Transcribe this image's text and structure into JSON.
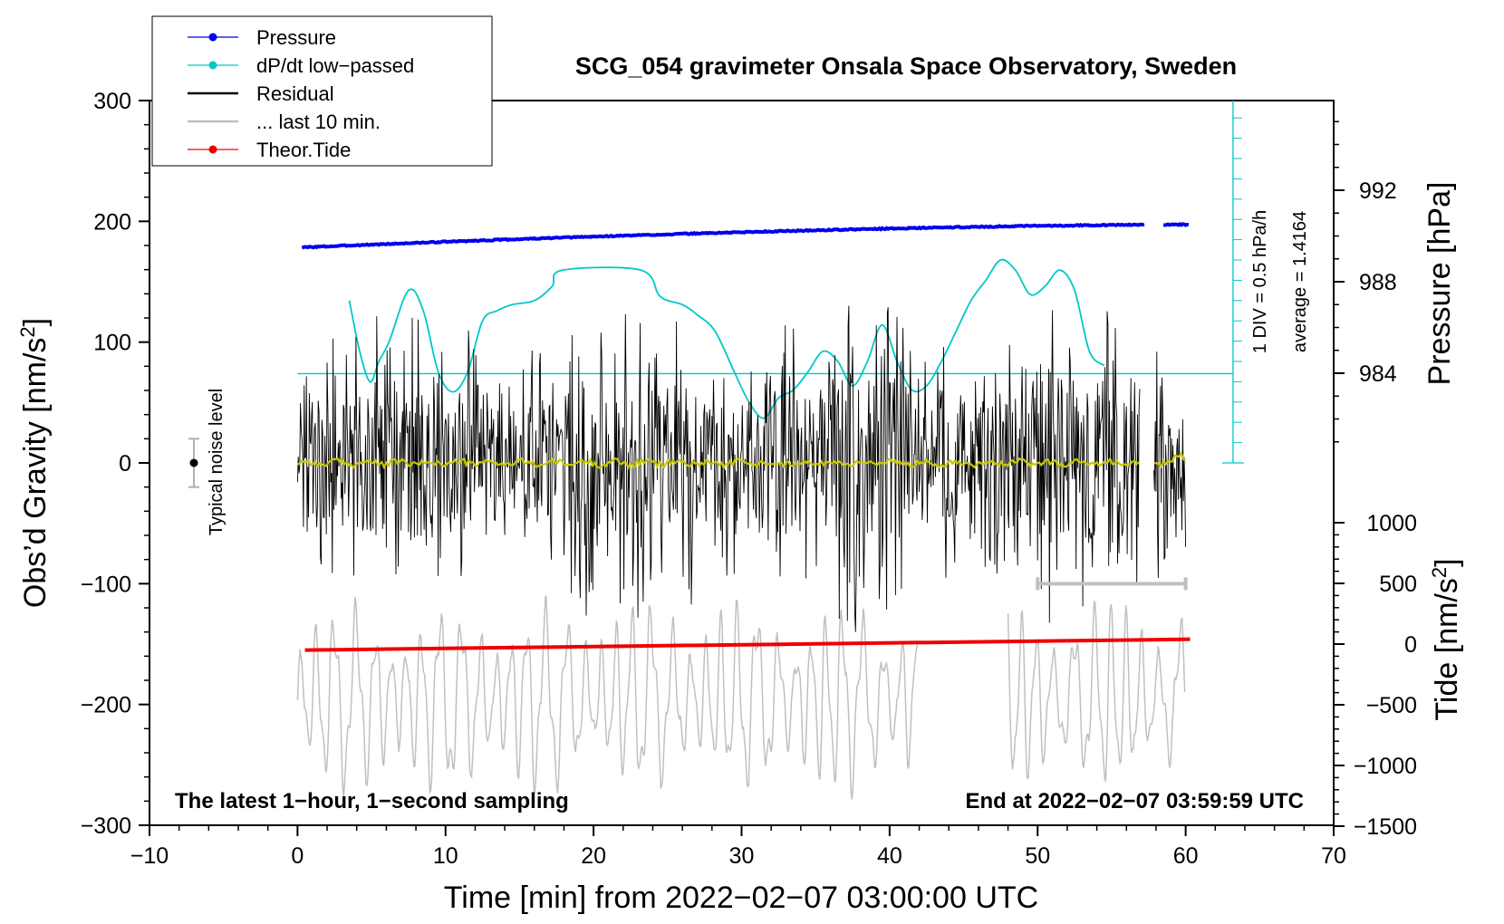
{
  "chart_data": {
    "type": "line",
    "title": "SCG_054 gravimeter Onsala Space Observatory, Sweden",
    "xlabel": "Time [min] from 2022−02−07 03:00:00 UTC",
    "ylabel_main": "Obs’d Gravity [nm/s",
    "ylabel_main_sup": "2",
    "ylabel_main_end": "]",
    "ylabel_pressure": "Pressure [hPa]",
    "ylabel_tide": "Tide [nm/s",
    "ylabel_tide_sup": "2",
    "ylabel_tide_end": "]",
    "xlim": [
      -10,
      70
    ],
    "ylim_main": [
      -300,
      300
    ],
    "xticks": [
      -10,
      0,
      10,
      20,
      30,
      40,
      50,
      60,
      70
    ],
    "xtick_labels": [
      "−10",
      "0",
      "10",
      "20",
      "30",
      "40",
      "50",
      "60",
      "70"
    ],
    "yticks_main": [
      300,
      200,
      100,
      0,
      -100,
      -200,
      -300
    ],
    "ytick_labels_main": [
      "300",
      "200",
      "100",
      "0",
      "−100",
      "−200",
      "−300"
    ],
    "pressure_ticks": [
      992,
      988,
      984
    ],
    "pressure_tick_labels": [
      "992",
      "988",
      "984"
    ],
    "pressure_range_hpa": [
      980,
      996
    ],
    "tide_ticks": [
      1000,
      500,
      0,
      -500,
      -1000,
      -1500
    ],
    "tide_tick_labels": [
      "1000",
      "500",
      "0",
      "−500",
      "−1000",
      "−1500"
    ],
    "tide_range": [
      -1500,
      1000
    ],
    "legend": [
      {
        "label": "Pressure",
        "color": "#0000ee",
        "marker": true
      },
      {
        "label": "dP/dt low−passed",
        "color": "#00c8c8",
        "marker": true
      },
      {
        "label": "Residual",
        "color": "#000000",
        "marker": false
      },
      {
        "label": "... last 10 min.",
        "color": "#c0c0c0",
        "marker": false
      },
      {
        "label": "Theor.Tide",
        "color": "#ee0000",
        "marker": true
      }
    ],
    "series": [
      {
        "name": "Pressure",
        "color": "#0000ee",
        "axis": "pressure",
        "start": [
          0.3,
          989.5
        ],
        "end": [
          60.3,
          990.5
        ]
      },
      {
        "name": "dP/dt low-passed",
        "color": "#00c8c8",
        "x": [
          3.5,
          4.2,
          4.9,
          5.5,
          6.2,
          7.5,
          8.5,
          9.5,
          10.5,
          11.5,
          12.5,
          13.5,
          14.5,
          16.0,
          17.2,
          17.9,
          23.2,
          24.5,
          26.0,
          27.0,
          28.2,
          29.5,
          30.5,
          31.5,
          32.5,
          33.5,
          34.5,
          35.5,
          36.5,
          37.5,
          38.5,
          39.5,
          40.5,
          41.5,
          42.5,
          43.5,
          44.5,
          45.5,
          46.5,
          47.5,
          48.5,
          49.5,
          50.5,
          51.5,
          52.5,
          53.5,
          54.5
        ],
        "y_div": [
          8.0,
          5.5,
          4.0,
          5.0,
          6.0,
          8.5,
          7.5,
          4.5,
          3.5,
          4.5,
          7.0,
          7.5,
          7.8,
          8.0,
          8.7,
          9.5,
          9.5,
          8.2,
          7.8,
          7.3,
          6.5,
          4.5,
          3.0,
          2.2,
          3.2,
          3.6,
          4.5,
          5.5,
          5.0,
          3.8,
          5.0,
          6.8,
          5.0,
          3.6,
          3.8,
          5.0,
          6.5,
          8.0,
          9.0,
          10.0,
          9.5,
          8.3,
          8.7,
          9.5,
          8.5,
          5.5,
          4.8
        ],
        "avg_line_div": 4.4
      },
      {
        "name": "Residual",
        "color": "#000000",
        "x_range": [
          0,
          60
        ],
        "gap": [
          56.9,
          57.8
        ],
        "max_abs": 130
      },
      {
        "name": "Residual smoothed",
        "color": "#c8c800",
        "x_range": [
          0,
          60
        ]
      },
      {
        "name": "... last 10 min.",
        "color": "#c0c0c0",
        "segments": [
          [
            0,
            42
          ],
          [
            48,
            60
          ]
        ],
        "range": [
          -280,
          -110
        ]
      },
      {
        "name": "Theor.Tide",
        "color": "#ee0000",
        "start": [
          0.5,
          -155
        ],
        "end": [
          60.3,
          -146
        ]
      }
    ],
    "noise_level": {
      "label": "Typical noise level",
      "x": -7,
      "y": 0,
      "halfwidth": 20
    },
    "scale_bar": {
      "x": [
        50,
        60
      ],
      "y": -100
    },
    "annotations": {
      "div_label": "1 DIV = 0.5 hPa/h",
      "average_label": "average = 1.4164",
      "bottom_left": "The latest 1−hour, 1−second sampling",
      "bottom_right": "End at 2022−02−07 03:59:59 UTC"
    }
  }
}
